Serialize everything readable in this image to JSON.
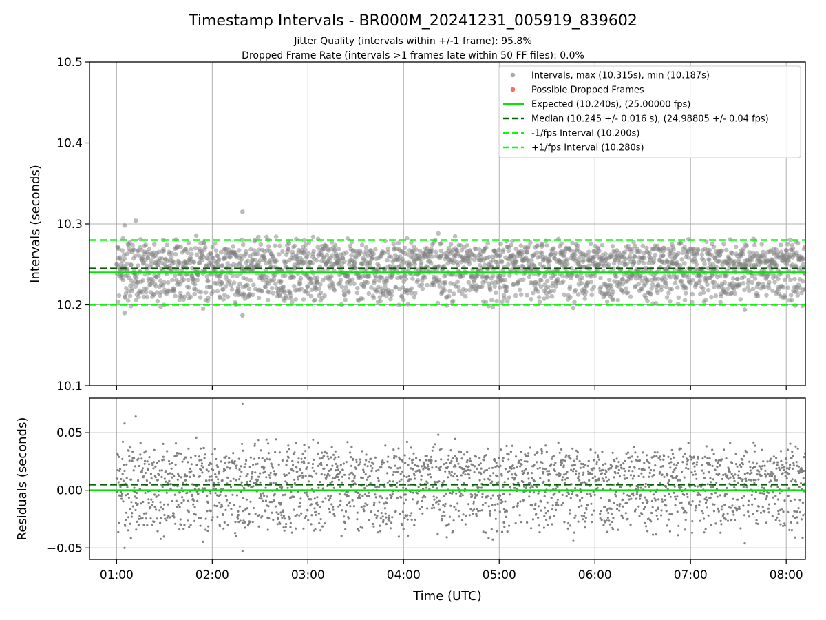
{
  "title": "Timestamp Intervals - BR000M_20241231_005919_839602",
  "subtitle1": "Jitter Quality (intervals within +/-1 frame): 95.8%",
  "subtitle2": "Dropped Frame Rate (intervals >1 frames late within 50 FF files): 0.0%",
  "colors": {
    "points": "#808080",
    "dropped": "#ff0000",
    "expected": "#00e600",
    "median": "#006400",
    "bounds": "#00ff00",
    "grid": "#b0b0b0"
  },
  "chart_data": [
    {
      "type": "scatter",
      "ylabel": "Intervals (seconds)",
      "ylim": [
        10.1,
        10.5
      ],
      "yticks": [
        10.1,
        10.2,
        10.3,
        10.4,
        10.5
      ],
      "ytick_labels": [
        "10.1",
        "10.2",
        "10.3",
        "10.4",
        "10.5"
      ],
      "xlim": [
        "00:43",
        "08:12"
      ],
      "xticks": [
        "01:00",
        "02:00",
        "03:00",
        "04:00",
        "05:00",
        "06:00",
        "07:00",
        "08:00"
      ],
      "grid": true,
      "legend_position": "top-right",
      "legend": [
        {
          "label": "Intervals, max (10.315s), min (10.187s)",
          "kind": "dot",
          "color": "#aaaaaa"
        },
        {
          "label": "Possible Dropped Frames",
          "kind": "dot",
          "color": "#ff6666"
        },
        {
          "label": "Expected (10.240s), (25.00000 fps)",
          "kind": "solid",
          "color": "#00e600"
        },
        {
          "label": "Median (10.245 +/- 0.016 s), (24.98805 +/- 0.04 fps)",
          "kind": "dashed",
          "color": "#006400"
        },
        {
          "label": "-1/fps Interval (10.200s)",
          "kind": "dashed",
          "color": "#00ff00"
        },
        {
          "label": "+1/fps Interval (10.280s)",
          "kind": "dashed",
          "color": "#00ff00"
        }
      ],
      "series": [
        {
          "name": "Intervals, max (10.315s), min (10.187s)",
          "start": "01:00",
          "end": "08:12",
          "count": 2500,
          "center": 10.245,
          "levels": [
            10.22,
            10.24,
            10.26
          ],
          "max": 10.315,
          "min": 10.187
        },
        {
          "name": "Possible Dropped Frames",
          "count": 0
        }
      ],
      "reference_lines": [
        {
          "name": "Expected",
          "y": 10.24,
          "style": "solid"
        },
        {
          "name": "Median",
          "y": 10.245,
          "style": "dashed"
        },
        {
          "name": "-1/fps Interval",
          "y": 10.2,
          "style": "dashed"
        },
        {
          "name": "+1/fps Interval",
          "y": 10.28,
          "style": "dashed"
        }
      ],
      "outliers": [
        {
          "x": "02:19",
          "y": 10.315
        },
        {
          "x": "02:19",
          "y": 10.187
        },
        {
          "x": "01:05",
          "y": 10.19
        },
        {
          "x": "01:05",
          "y": 10.298
        },
        {
          "x": "01:12",
          "y": 10.304
        },
        {
          "x": "07:34",
          "y": 10.194
        }
      ]
    },
    {
      "type": "scatter",
      "ylabel": "Residuals (seconds)",
      "xlabel": "Time (UTC)",
      "ylim": [
        -0.06,
        0.08
      ],
      "yticks": [
        -0.05,
        0.0,
        0.05
      ],
      "ytick_labels": [
        "−0.05",
        "0.00",
        "0.05"
      ],
      "xlim": [
        "00:43",
        "08:12"
      ],
      "xticks": [
        "01:00",
        "02:00",
        "03:00",
        "04:00",
        "05:00",
        "06:00",
        "07:00",
        "08:00"
      ],
      "grid": true,
      "reference_lines": [
        {
          "name": "Expected",
          "y": 0.0,
          "style": "solid"
        },
        {
          "name": "Median",
          "y": 0.005,
          "style": "dashed"
        }
      ]
    }
  ]
}
